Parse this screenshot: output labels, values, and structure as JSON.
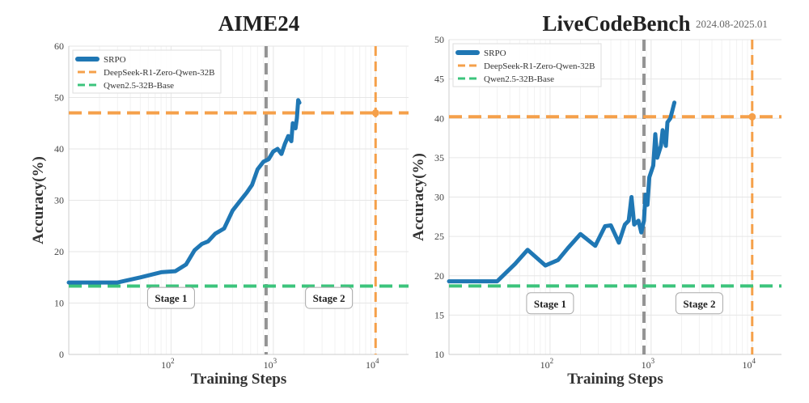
{
  "chart_data": [
    {
      "type": "line",
      "title": "AIME24",
      "subtitle": "",
      "xlabel": "Training Steps",
      "ylabel": "Accuracy(%)",
      "xscale": "log",
      "xlim": [
        10,
        21000
      ],
      "ylim": [
        0,
        60
      ],
      "yticks": [
        0,
        10,
        20,
        30,
        40,
        50,
        60
      ],
      "xticks": [
        {
          "v": 100,
          "base": "10",
          "exp": "2"
        },
        {
          "v": 1000,
          "base": "10",
          "exp": "3"
        },
        {
          "v": 10000,
          "base": "10",
          "exp": "4"
        }
      ],
      "grid": true,
      "legend_position": "top-left",
      "legend": [
        "SRPO",
        "DeepSeek-R1-Zero-Qwen-32B",
        "Qwen2.5-32B-Base"
      ],
      "colors": {
        "srpo": "#1f77b4",
        "deepseek": "#f5a04a",
        "qwen": "#3cc47c",
        "stage_divider": "#888888"
      },
      "series": [
        {
          "name": "SRPO",
          "x": [
            10,
            30,
            50,
            80,
            110,
            140,
            170,
            200,
            230,
            270,
            330,
            400,
            470,
            550,
            620,
            700,
            800,
            900,
            1000,
            1100,
            1200,
            1300,
            1400,
            1500,
            1550,
            1650,
            1700,
            1750,
            1800
          ],
          "y": [
            14,
            14,
            15,
            16,
            16.2,
            17.5,
            20.3,
            21.5,
            22,
            23.5,
            24.5,
            28,
            29.8,
            31.5,
            33,
            36,
            37.5,
            38,
            39.5,
            40,
            39,
            41,
            42.5,
            41.5,
            45,
            44,
            46,
            49.5,
            49
          ]
        }
      ],
      "hlines": [
        {
          "name": "DeepSeek-R1-Zero-Qwen-32B",
          "y": 47
        },
        {
          "name": "Qwen2.5-32B-Base",
          "y": 13.3
        }
      ],
      "vlines": [
        {
          "name": "DeepSeek-R1-Zero-Qwen-32B",
          "x": 10000
        },
        {
          "name": "stage-divider",
          "x": 850
        }
      ],
      "marker": {
        "x": 10000,
        "y": 47
      },
      "annotations": [
        {
          "text": "Stage 1",
          "x": 100,
          "y": 11
        },
        {
          "text": "Stage 2",
          "x": 3500,
          "y": 11
        }
      ]
    },
    {
      "type": "line",
      "title": "LiveCodeBench",
      "subtitle": "2024.08-2025.01",
      "xlabel": "Training Steps",
      "ylabel": "Accuracy(%)",
      "xscale": "log",
      "xlim": [
        10,
        19500
      ],
      "ylim": [
        10,
        50
      ],
      "yticks": [
        10,
        15,
        20,
        25,
        30,
        35,
        40,
        45,
        50
      ],
      "xticks": [
        {
          "v": 100,
          "base": "10",
          "exp": "2"
        },
        {
          "v": 1000,
          "base": "10",
          "exp": "3"
        },
        {
          "v": 10000,
          "base": "10",
          "exp": "4"
        }
      ],
      "grid": true,
      "legend_position": "top-left",
      "legend": [
        "SRPO",
        "DeepSeek-R1-Zero-Qwen-32B",
        "Qwen2.5-32B-Base"
      ],
      "colors": {
        "srpo": "#1f77b4",
        "deepseek": "#f5a04a",
        "qwen": "#3cc47c",
        "stage_divider": "#888888"
      },
      "series": [
        {
          "name": "SRPO",
          "x": [
            10,
            30,
            45,
            60,
            90,
            120,
            150,
            200,
            280,
            350,
            400,
            480,
            550,
            600,
            640,
            680,
            750,
            800,
            850,
            880,
            920,
            960,
            1050,
            1100,
            1150,
            1250,
            1300,
            1400,
            1450,
            1550,
            1700
          ],
          "y": [
            19.3,
            19.3,
            21.5,
            23.3,
            21.3,
            22,
            23.5,
            25.3,
            23.8,
            26.3,
            26.4,
            24.2,
            26.5,
            27,
            30,
            26.5,
            27,
            25.5,
            27,
            30.3,
            29,
            32.5,
            34,
            38,
            35,
            36.5,
            38.5,
            36.5,
            39.5,
            40,
            42
          ]
        }
      ],
      "hlines": [
        {
          "name": "DeepSeek-R1-Zero-Qwen-32B",
          "y": 40.2
        },
        {
          "name": "Qwen2.5-32B-Base",
          "y": 18.7
        }
      ],
      "vlines": [
        {
          "name": "DeepSeek-R1-Zero-Qwen-32B",
          "x": 10000
        },
        {
          "name": "stage-divider",
          "x": 850
        }
      ],
      "marker": {
        "x": 10000,
        "y": 40.2
      },
      "annotations": [
        {
          "text": "Stage 1",
          "x": 100,
          "y": 16.5
        },
        {
          "text": "Stage 2",
          "x": 3000,
          "y": 16.5
        }
      ]
    }
  ]
}
